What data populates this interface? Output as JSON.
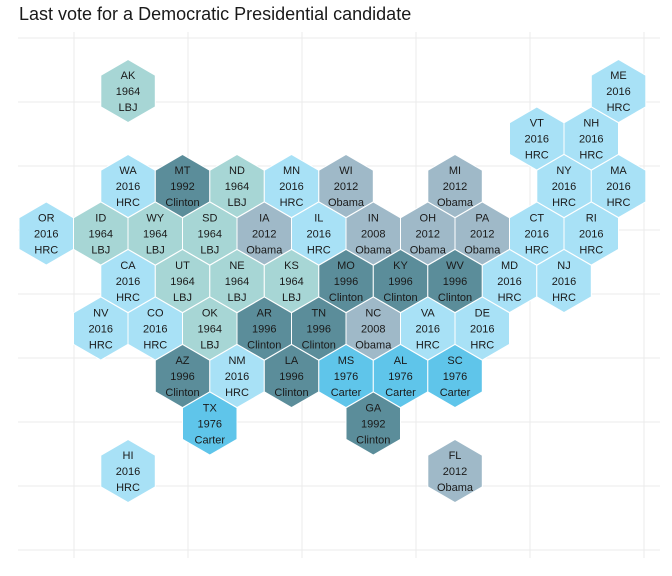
{
  "chart_data": {
    "type": "hexmap",
    "title": "Last vote for a Democratic Presidential candidate",
    "xlabel": "",
    "ylabel": "",
    "grid": true,
    "legend": "none",
    "colors": {
      "1964 LBJ": "#a7d6d5",
      "1976 Carter": "#5fc5ea",
      "1992 Clinton": "#5b8d9a",
      "1996 Clinton": "#5b8d9a",
      "2008 Obama": "#9fb9c8",
      "2012 Obama": "#9fb9c8",
      "2016 HRC": "#a8e1f6"
    },
    "states": [
      {
        "abbr": "AK",
        "year": "1964",
        "candidate": "LBJ",
        "col": 1,
        "row": 0
      },
      {
        "abbr": "ME",
        "year": "2016",
        "candidate": "HRC",
        "col": 10,
        "row": 0
      },
      {
        "abbr": "VT",
        "year": "2016",
        "candidate": "HRC",
        "col": 9,
        "row": 1
      },
      {
        "abbr": "NH",
        "year": "2016",
        "candidate": "HRC",
        "col": 10,
        "row": 1
      },
      {
        "abbr": "WA",
        "year": "2016",
        "candidate": "HRC",
        "col": 1,
        "row": 2
      },
      {
        "abbr": "MT",
        "year": "1992",
        "candidate": "Clinton",
        "col": 2,
        "row": 2
      },
      {
        "abbr": "ND",
        "year": "1964",
        "candidate": "LBJ",
        "col": 3,
        "row": 2
      },
      {
        "abbr": "MN",
        "year": "2016",
        "candidate": "HRC",
        "col": 4,
        "row": 2
      },
      {
        "abbr": "WI",
        "year": "2012",
        "candidate": "Obama",
        "col": 5,
        "row": 2
      },
      {
        "abbr": "MI",
        "year": "2012",
        "candidate": "Obama",
        "col": 7,
        "row": 2
      },
      {
        "abbr": "NY",
        "year": "2016",
        "candidate": "HRC",
        "col": 9,
        "row": 2
      },
      {
        "abbr": "MA",
        "year": "2016",
        "candidate": "HRC",
        "col": 10,
        "row": 2
      },
      {
        "abbr": "OR",
        "year": "2016",
        "candidate": "HRC",
        "col": 0,
        "row": 3
      },
      {
        "abbr": "ID",
        "year": "1964",
        "candidate": "LBJ",
        "col": 1,
        "row": 3
      },
      {
        "abbr": "WY",
        "year": "1964",
        "candidate": "LBJ",
        "col": 2,
        "row": 3
      },
      {
        "abbr": "SD",
        "year": "1964",
        "candidate": "LBJ",
        "col": 3,
        "row": 3
      },
      {
        "abbr": "IA",
        "year": "2012",
        "candidate": "Obama",
        "col": 4,
        "row": 3
      },
      {
        "abbr": "IL",
        "year": "2016",
        "candidate": "HRC",
        "col": 5,
        "row": 3
      },
      {
        "abbr": "IN",
        "year": "2008",
        "candidate": "Obama",
        "col": 6,
        "row": 3
      },
      {
        "abbr": "OH",
        "year": "2012",
        "candidate": "Obama",
        "col": 7,
        "row": 3
      },
      {
        "abbr": "PA",
        "year": "2012",
        "candidate": "Obama",
        "col": 8,
        "row": 3
      },
      {
        "abbr": "CT",
        "year": "2016",
        "candidate": "HRC",
        "col": 9,
        "row": 3
      },
      {
        "abbr": "RI",
        "year": "2016",
        "candidate": "HRC",
        "col": 10,
        "row": 3
      },
      {
        "abbr": "CA",
        "year": "2016",
        "candidate": "HRC",
        "col": 1,
        "row": 4
      },
      {
        "abbr": "UT",
        "year": "1964",
        "candidate": "LBJ",
        "col": 2,
        "row": 4
      },
      {
        "abbr": "NE",
        "year": "1964",
        "candidate": "LBJ",
        "col": 3,
        "row": 4
      },
      {
        "abbr": "KS",
        "year": "1964",
        "candidate": "LBJ",
        "col": 4,
        "row": 4
      },
      {
        "abbr": "MO",
        "year": "1996",
        "candidate": "Clinton",
        "col": 5,
        "row": 4
      },
      {
        "abbr": "KY",
        "year": "1996",
        "candidate": "Clinton",
        "col": 6,
        "row": 4
      },
      {
        "abbr": "WV",
        "year": "1996",
        "candidate": "Clinton",
        "col": 7,
        "row": 4
      },
      {
        "abbr": "MD",
        "year": "2016",
        "candidate": "HRC",
        "col": 8,
        "row": 4
      },
      {
        "abbr": "NJ",
        "year": "2016",
        "candidate": "HRC",
        "col": 9,
        "row": 4
      },
      {
        "abbr": "NV",
        "year": "2016",
        "candidate": "HRC",
        "col": 1,
        "row": 5
      },
      {
        "abbr": "CO",
        "year": "2016",
        "candidate": "HRC",
        "col": 2,
        "row": 5
      },
      {
        "abbr": "OK",
        "year": "1964",
        "candidate": "LBJ",
        "col": 3,
        "row": 5
      },
      {
        "abbr": "AR",
        "year": "1996",
        "candidate": "Clinton",
        "col": 4,
        "row": 5
      },
      {
        "abbr": "TN",
        "year": "1996",
        "candidate": "Clinton",
        "col": 5,
        "row": 5
      },
      {
        "abbr": "NC",
        "year": "2008",
        "candidate": "Obama",
        "col": 6,
        "row": 5
      },
      {
        "abbr": "VA",
        "year": "2016",
        "candidate": "HRC",
        "col": 7,
        "row": 5
      },
      {
        "abbr": "DE",
        "year": "2016",
        "candidate": "HRC",
        "col": 8,
        "row": 5
      },
      {
        "abbr": "AZ",
        "year": "1996",
        "candidate": "Clinton",
        "col": 2,
        "row": 6
      },
      {
        "abbr": "NM",
        "year": "2016",
        "candidate": "HRC",
        "col": 3,
        "row": 6
      },
      {
        "abbr": "LA",
        "year": "1996",
        "candidate": "Clinton",
        "col": 4,
        "row": 6
      },
      {
        "abbr": "MS",
        "year": "1976",
        "candidate": "Carter",
        "col": 5,
        "row": 6
      },
      {
        "abbr": "AL",
        "year": "1976",
        "candidate": "Carter",
        "col": 6,
        "row": 6
      },
      {
        "abbr": "SC",
        "year": "1976",
        "candidate": "Carter",
        "col": 7,
        "row": 6
      },
      {
        "abbr": "TX",
        "year": "1976",
        "candidate": "Carter",
        "col": 3,
        "row": 7
      },
      {
        "abbr": "GA",
        "year": "1992",
        "candidate": "Clinton",
        "col": 6,
        "row": 7
      },
      {
        "abbr": "HI",
        "year": "2016",
        "candidate": "HRC",
        "col": 1,
        "row": 8
      },
      {
        "abbr": "FL",
        "year": "2012",
        "candidate": "Obama",
        "col": 7,
        "row": 8
      }
    ]
  }
}
